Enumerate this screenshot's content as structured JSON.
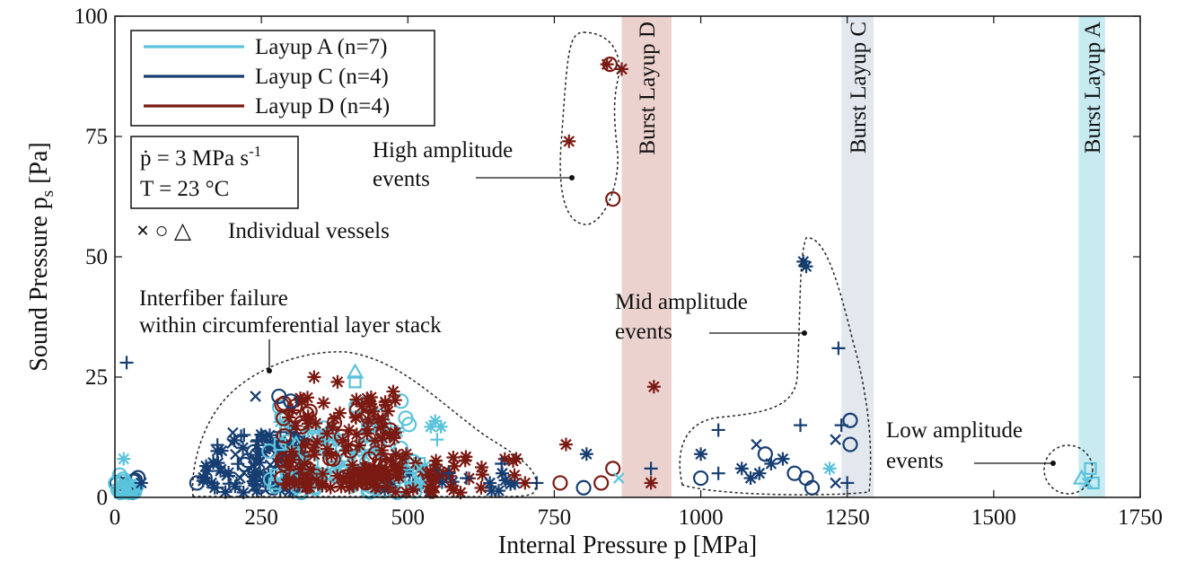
{
  "chart_data": {
    "type": "scatter",
    "xlabel": "Internal Pressure p [MPa]",
    "ylabel_main": "Sound Pressure p",
    "ylabel_sub": "s",
    "ylabel_unit": " [Pa]",
    "xlim": [
      0,
      1750
    ],
    "ylim": [
      0,
      100
    ],
    "xticks": [
      "0",
      "250",
      "500",
      "750",
      "1000",
      "1250",
      "1500",
      "1750"
    ],
    "yticks": [
      "0",
      "25",
      "50",
      "75",
      "100"
    ],
    "colors": {
      "A": "#5bc3dc",
      "C": "#173e72",
      "D": "#7a1a12"
    },
    "series": [
      {
        "name": "Layup A (n=7)",
        "key": "A"
      },
      {
        "name": "Layup C (n=4)",
        "key": "C"
      },
      {
        "name": "Layup D (n=4)",
        "key": "D"
      }
    ],
    "conditions": {
      "rate": "ṗ = 3 MPa s",
      "rate_exp": "-1",
      "temp": "T = 23 °C"
    },
    "vessel_legend": {
      "symbols": "× ○ △",
      "label": "Individual vessels"
    },
    "burst_bands": [
      {
        "label": "Burst Layup D",
        "x0": 865,
        "x1": 950,
        "color": "#ecd2cf"
      },
      {
        "label": "Burst Layup C",
        "x0": 1240,
        "x1": 1295,
        "color": "#e3e7ee"
      },
      {
        "label": "Burst Layup A",
        "x0": 1645,
        "x1": 1690,
        "color": "#c7ebf1"
      }
    ],
    "annotations": {
      "interfiber_1": "Interfiber failure",
      "interfiber_2": "within circumferential layer stack",
      "high_1": "High amplitude",
      "high_2": "events",
      "mid_1": "Mid amplitude",
      "mid_2": "events",
      "low_1": "Low amplitude",
      "low_2": "events"
    },
    "points": [
      {
        "s": "D",
        "m": "star",
        "x": 840,
        "y": 90
      },
      {
        "s": "D",
        "m": "circle",
        "x": 845,
        "y": 90
      },
      {
        "s": "D",
        "m": "star",
        "x": 865,
        "y": 89
      },
      {
        "s": "D",
        "m": "star",
        "x": 775,
        "y": 74
      },
      {
        "s": "D",
        "m": "circle",
        "x": 850,
        "y": 62
      },
      {
        "s": "D",
        "m": "star",
        "x": 920,
        "y": 23
      },
      {
        "s": "D",
        "m": "star",
        "x": 770,
        "y": 11
      },
      {
        "s": "D",
        "m": "circle",
        "x": 850,
        "y": 6
      },
      {
        "s": "D",
        "m": "circle",
        "x": 760,
        "y": 3
      },
      {
        "s": "D",
        "m": "circle",
        "x": 830,
        "y": 3
      },
      {
        "s": "D",
        "m": "star",
        "x": 915,
        "y": 3
      },
      {
        "s": "C",
        "m": "star",
        "x": 805,
        "y": 9
      },
      {
        "s": "C",
        "m": "plus",
        "x": 915,
        "y": 6
      },
      {
        "s": "A",
        "m": "x",
        "x": 860,
        "y": 4
      },
      {
        "s": "C",
        "m": "circle",
        "x": 800,
        "y": 2
      },
      {
        "s": "D",
        "m": "star",
        "x": 340,
        "y": 25
      },
      {
        "s": "D",
        "m": "star",
        "x": 380,
        "y": 24
      },
      {
        "s": "A",
        "m": "tri",
        "x": 410,
        "y": 26
      },
      {
        "s": "A",
        "m": "sq",
        "x": 410,
        "y": 24
      },
      {
        "s": "C",
        "m": "x",
        "x": 240,
        "y": 21
      },
      {
        "s": "C",
        "m": "circle",
        "x": 280,
        "y": 21
      },
      {
        "s": "C",
        "m": "circle",
        "x": 300,
        "y": 20
      },
      {
        "s": "D",
        "m": "star",
        "x": 470,
        "y": 13
      },
      {
        "s": "A",
        "m": "plus",
        "x": 550,
        "y": 12
      },
      {
        "s": "D",
        "m": "circle",
        "x": 470,
        "y": 14
      },
      {
        "s": "C",
        "m": "plus",
        "x": 660,
        "y": 7
      },
      {
        "s": "C",
        "m": "plus",
        "x": 20,
        "y": 28
      },
      {
        "s": "A",
        "m": "star",
        "x": 15,
        "y": 8
      },
      {
        "s": "C",
        "m": "star",
        "x": 1175,
        "y": 49
      },
      {
        "s": "C",
        "m": "star",
        "x": 1180,
        "y": 48
      },
      {
        "s": "C",
        "m": "plus",
        "x": 1235,
        "y": 31
      },
      {
        "s": "C",
        "m": "circle",
        "x": 1255,
        "y": 16
      },
      {
        "s": "C",
        "m": "plus",
        "x": 1170,
        "y": 15
      },
      {
        "s": "C",
        "m": "plus",
        "x": 1240,
        "y": 15
      },
      {
        "s": "C",
        "m": "circle",
        "x": 1255,
        "y": 11
      },
      {
        "s": "C",
        "m": "plus",
        "x": 1030,
        "y": 14
      },
      {
        "s": "C",
        "m": "x",
        "x": 1230,
        "y": 12
      },
      {
        "s": "C",
        "m": "x",
        "x": 1095,
        "y": 11
      },
      {
        "s": "C",
        "m": "circle",
        "x": 1110,
        "y": 9
      },
      {
        "s": "C",
        "m": "star",
        "x": 1000,
        "y": 9
      },
      {
        "s": "C",
        "m": "star",
        "x": 1070,
        "y": 6
      },
      {
        "s": "C",
        "m": "star",
        "x": 1100,
        "y": 5
      },
      {
        "s": "C",
        "m": "star",
        "x": 1120,
        "y": 7
      },
      {
        "s": "C",
        "m": "star",
        "x": 1140,
        "y": 8
      },
      {
        "s": "C",
        "m": "circle",
        "x": 1160,
        "y": 5
      },
      {
        "s": "C",
        "m": "plus",
        "x": 1030,
        "y": 5
      },
      {
        "s": "C",
        "m": "circle",
        "x": 1000,
        "y": 4
      },
      {
        "s": "C",
        "m": "circle",
        "x": 1180,
        "y": 4
      },
      {
        "s": "C",
        "m": "circle",
        "x": 1190,
        "y": 2
      },
      {
        "s": "A",
        "m": "star",
        "x": 1220,
        "y": 6
      },
      {
        "s": "C",
        "m": "plus",
        "x": 1250,
        "y": 3
      },
      {
        "s": "C",
        "m": "x",
        "x": 1230,
        "y": 3
      },
      {
        "s": "C",
        "m": "star",
        "x": 1085,
        "y": 4
      },
      {
        "s": "A",
        "m": "sq",
        "x": 1665,
        "y": 6
      },
      {
        "s": "A",
        "m": "tri",
        "x": 1650,
        "y": 4
      },
      {
        "s": "A",
        "m": "sq",
        "x": 1670,
        "y": 3
      },
      {
        "s": "A",
        "m": "x",
        "x": 1660,
        "y": 3
      },
      {
        "s": "C",
        "m": "plus",
        "x": 570,
        "y": 5
      },
      {
        "s": "C",
        "m": "plus",
        "x": 600,
        "y": 4
      },
      {
        "s": "A",
        "m": "x",
        "x": 520,
        "y": 6
      },
      {
        "s": "C",
        "m": "star",
        "x": 640,
        "y": 3
      },
      {
        "s": "D",
        "m": "star",
        "x": 700,
        "y": 3
      },
      {
        "s": "C",
        "m": "plus",
        "x": 720,
        "y": 3
      },
      {
        "s": "C",
        "m": "circle",
        "x": 140,
        "y": 3
      },
      {
        "s": "C",
        "m": "star",
        "x": 165,
        "y": 3
      },
      {
        "s": "C",
        "m": "star",
        "x": 45,
        "y": 3
      }
    ],
    "clusters": [
      {
        "s": "D",
        "m": "star",
        "n": 110,
        "x0": 290,
        "x1": 480,
        "y0": 2,
        "y1": 22,
        "seed": 11
      },
      {
        "s": "D",
        "m": "circle",
        "n": 45,
        "x0": 280,
        "x1": 470,
        "y0": 2,
        "y1": 20,
        "seed": 12
      },
      {
        "s": "D",
        "m": "star",
        "n": 40,
        "x0": 470,
        "x1": 690,
        "y0": 1,
        "y1": 10,
        "seed": 13
      },
      {
        "s": "A",
        "m": "circle",
        "n": 55,
        "x0": 260,
        "x1": 520,
        "y0": 1,
        "y1": 20,
        "seed": 21
      },
      {
        "s": "A",
        "m": "star",
        "n": 30,
        "x0": 280,
        "x1": 560,
        "y0": 2,
        "y1": 16,
        "seed": 22
      },
      {
        "s": "A",
        "m": "sq",
        "n": 20,
        "x0": 260,
        "x1": 520,
        "y0": 2,
        "y1": 16,
        "seed": 23
      },
      {
        "s": "A",
        "m": "tri",
        "n": 12,
        "x0": 280,
        "x1": 500,
        "y0": 2,
        "y1": 15,
        "seed": 24
      },
      {
        "s": "C",
        "m": "star",
        "n": 45,
        "x0": 150,
        "x1": 330,
        "y0": 1,
        "y1": 15,
        "seed": 31
      },
      {
        "s": "C",
        "m": "x",
        "n": 25,
        "x0": 180,
        "x1": 320,
        "y0": 2,
        "y1": 14,
        "seed": 32
      },
      {
        "s": "C",
        "m": "plus",
        "n": 25,
        "x0": 170,
        "x1": 330,
        "y0": 2,
        "y1": 14,
        "seed": 33
      },
      {
        "s": "C",
        "m": "circle",
        "n": 18,
        "x0": 220,
        "x1": 320,
        "y0": 2,
        "y1": 12,
        "seed": 34
      },
      {
        "s": "C",
        "m": "star",
        "n": 25,
        "x0": 440,
        "x1": 700,
        "y0": 1,
        "y1": 6,
        "seed": 35
      },
      {
        "s": "A",
        "m": "circle",
        "n": 25,
        "x0": 0,
        "x1": 40,
        "y0": 1,
        "y1": 5,
        "seed": 41
      },
      {
        "s": "C",
        "m": "circle",
        "n": 10,
        "x0": 0,
        "x1": 40,
        "y0": 1,
        "y1": 5,
        "seed": 42
      }
    ]
  }
}
